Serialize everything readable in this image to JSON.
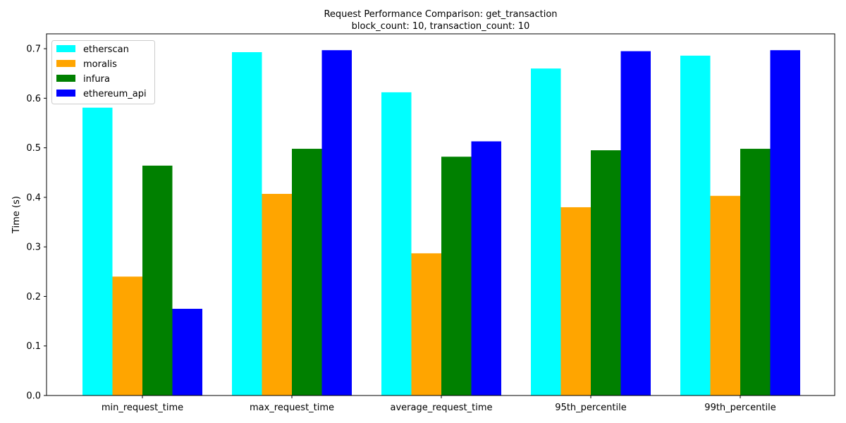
{
  "chart_data": {
    "type": "bar",
    "title": "Request Performance Comparison: get_transaction",
    "subtitle": "block_count: 10, transaction_count: 10",
    "xlabel": "",
    "ylabel": "Time (s)",
    "ylim": [
      0,
      0.73
    ],
    "yticks": [
      "0.0",
      "0.1",
      "0.2",
      "0.3",
      "0.4",
      "0.5",
      "0.6",
      "0.7"
    ],
    "yticks_values": [
      0,
      0.1,
      0.2,
      0.3,
      0.4,
      0.5,
      0.6,
      0.7
    ],
    "categories": [
      "min_request_time",
      "max_request_time",
      "average_request_time",
      "95th_percentile",
      "99th_percentile"
    ],
    "legend_position": "top-left",
    "grid": false,
    "series": [
      {
        "name": "etherscan",
        "color": "#00ffff",
        "values": [
          0.581,
          0.693,
          0.612,
          0.66,
          0.686
        ]
      },
      {
        "name": "moralis",
        "color": "#ffa500",
        "values": [
          0.24,
          0.407,
          0.287,
          0.38,
          0.403
        ]
      },
      {
        "name": "infura",
        "color": "#008000",
        "values": [
          0.464,
          0.498,
          0.482,
          0.495,
          0.498
        ]
      },
      {
        "name": "ethereum_api",
        "color": "#0000ff",
        "values": [
          0.175,
          0.697,
          0.513,
          0.695,
          0.697
        ]
      }
    ]
  }
}
